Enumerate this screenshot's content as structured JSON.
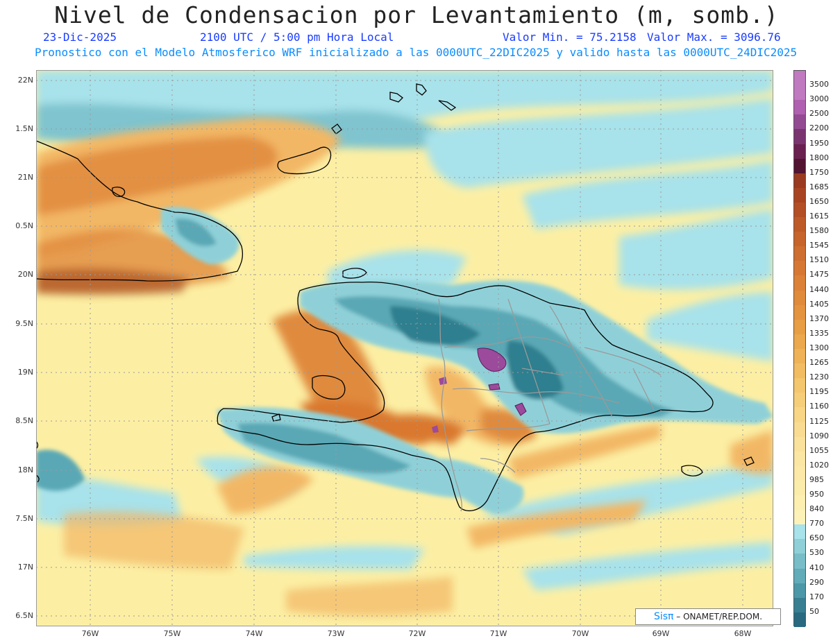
{
  "header": {
    "title": "Nivel de Condensacion por Levantamiento (m, somb.)",
    "date": "23-Dic-2025",
    "time": "2100 UTC / 5:00 pm Hora Local",
    "min_label": "Valor Min. = 75.2158",
    "max_label": "Valor Max. = 3096.76",
    "forecast_line": "Pronostico con el Modelo Atmosferico WRF inicializado a las 0000UTC_22DIC2025 y valido hasta las  0000UTC_24DIC2025"
  },
  "map": {
    "lat_labels": [
      "22N",
      "1.5N",
      "21N",
      "0.5N",
      "20N",
      "9.5N",
      "19N",
      "8.5N",
      "18N",
      "7.5N",
      "17N",
      "6.5N"
    ],
    "lon_labels": [
      "76W",
      "75W",
      "74W",
      "73W",
      "72W",
      "71W",
      "70W",
      "69W",
      "68W"
    ],
    "colors": {
      "teal_dark": "#2e7f8f",
      "teal": "#5aa8b5",
      "teal_light": "#8fd0d8",
      "cyan": "#a8e2ea",
      "yellow": "#fcefa4",
      "orange_light": "#f2b765",
      "orange": "#e08a3c",
      "brown": "#b05a2a",
      "purple": "#9c4a9c"
    }
  },
  "colorbar": {
    "labels": [
      "3500",
      "3000",
      "2500",
      "2200",
      "1950",
      "1800",
      "1750",
      "1685",
      "1650",
      "1615",
      "1580",
      "1545",
      "1510",
      "1475",
      "1440",
      "1405",
      "1370",
      "1335",
      "1300",
      "1265",
      "1230",
      "1195",
      "1160",
      "1125",
      "1090",
      "1055",
      "1020",
      "985",
      "950",
      "840",
      "770",
      "650",
      "530",
      "410",
      "290",
      "170",
      "50"
    ],
    "colors": [
      "#c07ac0",
      "#b060b0",
      "#934a93",
      "#7a3470",
      "#6a2050",
      "#521430",
      "#9a3a20",
      "#a84422",
      "#b44e24",
      "#be5a28",
      "#c6642c",
      "#ce6e30",
      "#d67834",
      "#dc8238",
      "#e08a3c",
      "#e4943e",
      "#e89e44",
      "#eca84c",
      "#efb256",
      "#f2bc62",
      "#f4c66e",
      "#f6ce7a",
      "#f8d686",
      "#f9dc92",
      "#fae29c",
      "#fbe6a4",
      "#fce9a8",
      "#fcecab",
      "#fcefb0",
      "#fcf2b8",
      "#a8e2ea",
      "#8fd0d8",
      "#78bdc8",
      "#62abb8",
      "#4c98a8",
      "#387f92",
      "#2a6a80"
    ]
  },
  "credit": {
    "brand": "Sisπ",
    "text": "– ONAMET/REP.DOM."
  }
}
